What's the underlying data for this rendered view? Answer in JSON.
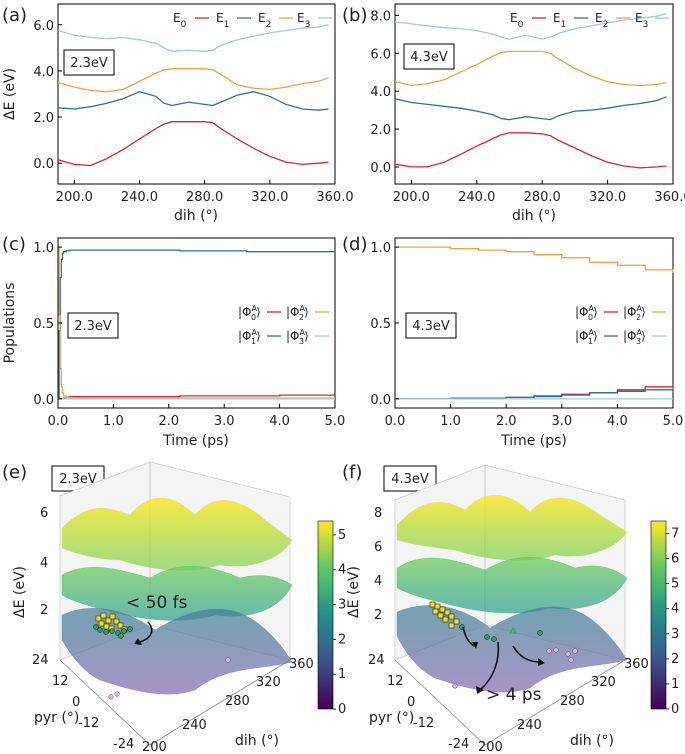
{
  "labels": {
    "a": "(a)",
    "b": "(b)",
    "c": "(c)",
    "d": "(d)",
    "e": "(e)",
    "f": "(f)",
    "energy_ylabel": "ΔE (eV)",
    "dih_xlabel": "dih (°)",
    "pop_ylabel": "Populations",
    "time_xlabel": "Time (ps)",
    "box_23": "2.3eV",
    "box_43": "4.3eV",
    "leg_E0": "E",
    "leg_E1": "E",
    "leg_E2": "E",
    "leg_E3": "E",
    "sub0": "0",
    "sub1": "1",
    "sub2": "2",
    "sub3": "3",
    "phi_sup": "A",
    "ann_e": "< 50 fs",
    "ann_f": "> 4 ps",
    "pyr_label": "pyr (°)",
    "dih3d_label": "dih (°)",
    "dE3d_label": "ΔE (eV)"
  },
  "colors": {
    "E0": "#d62728",
    "E1": "#2c6ea6",
    "E2": "#f5a042",
    "E3": "#9ccbe2"
  },
  "chart_data": [
    {
      "panel": "a",
      "type": "line",
      "xlabel": "dih (°)",
      "ylabel": "ΔE (eV)",
      "xlim": [
        190,
        360
      ],
      "ylim": [
        -0.9,
        6.9
      ],
      "xticks": [
        "200.0",
        "240.0",
        "280.0",
        "320.0",
        "360.0"
      ],
      "yticks": [
        "0.0",
        "2.0",
        "4.0",
        "6.0"
      ],
      "x": [
        190,
        200,
        210,
        220,
        230,
        240,
        250,
        255,
        260,
        270,
        280,
        285,
        290,
        300,
        310,
        320,
        330,
        340,
        350,
        356
      ],
      "series": [
        {
          "name": "E0",
          "values": [
            0.15,
            -0.05,
            -0.1,
            0.2,
            0.6,
            1.05,
            1.5,
            1.7,
            1.8,
            1.8,
            1.8,
            1.75,
            1.5,
            1.05,
            0.65,
            0.3,
            0.05,
            -0.05,
            0.0,
            0.05
          ]
        },
        {
          "name": "E1",
          "values": [
            2.4,
            2.35,
            2.45,
            2.6,
            2.8,
            3.1,
            2.9,
            2.6,
            2.5,
            2.65,
            2.55,
            2.5,
            2.65,
            2.95,
            3.1,
            2.9,
            2.55,
            2.35,
            2.3,
            2.35
          ]
        },
        {
          "name": "E2",
          "values": [
            3.5,
            3.3,
            3.15,
            3.1,
            3.2,
            3.55,
            3.9,
            4.05,
            4.1,
            4.1,
            4.1,
            4.05,
            3.85,
            3.4,
            3.25,
            3.2,
            3.3,
            3.45,
            3.55,
            3.7
          ]
        },
        {
          "name": "E3",
          "values": [
            5.75,
            5.55,
            5.45,
            5.4,
            5.45,
            5.35,
            5.2,
            5.0,
            4.85,
            4.9,
            4.85,
            4.9,
            5.1,
            5.35,
            5.5,
            5.65,
            5.75,
            5.85,
            5.9,
            6.0
          ]
        }
      ]
    },
    {
      "panel": "b",
      "type": "line",
      "xlabel": "dih (°)",
      "ylabel": "",
      "xlim": [
        190,
        360
      ],
      "ylim": [
        -0.9,
        8.6
      ],
      "xticks": [
        "200.0",
        "240.0",
        "280.0",
        "320.0",
        "360.0"
      ],
      "yticks": [
        "0.0",
        "2.0",
        "4.0",
        "6.0",
        "8.0"
      ],
      "x": [
        190,
        200,
        210,
        220,
        230,
        240,
        250,
        255,
        260,
        270,
        280,
        285,
        290,
        300,
        310,
        320,
        330,
        340,
        350,
        356
      ],
      "series": [
        {
          "name": "E0",
          "values": [
            0.15,
            0.0,
            0.0,
            0.25,
            0.65,
            1.1,
            1.5,
            1.7,
            1.8,
            1.8,
            1.75,
            1.65,
            1.4,
            1.0,
            0.6,
            0.25,
            0.05,
            -0.05,
            0.0,
            0.05
          ]
        },
        {
          "name": "E1",
          "values": [
            3.6,
            3.4,
            3.3,
            3.2,
            3.1,
            2.95,
            2.75,
            2.55,
            2.5,
            2.65,
            2.55,
            2.5,
            2.7,
            2.95,
            3.0,
            3.1,
            3.25,
            3.35,
            3.5,
            3.7
          ]
        },
        {
          "name": "E2",
          "values": [
            4.5,
            4.3,
            4.4,
            4.6,
            5.0,
            5.4,
            5.85,
            6.05,
            6.1,
            6.1,
            6.1,
            6.0,
            5.7,
            5.2,
            4.8,
            4.5,
            4.35,
            4.3,
            4.35,
            4.45
          ]
        },
        {
          "name": "E3",
          "values": [
            7.65,
            7.55,
            7.45,
            7.35,
            7.3,
            7.2,
            7.0,
            6.85,
            6.75,
            6.95,
            6.75,
            6.85,
            7.05,
            7.3,
            7.45,
            7.6,
            7.75,
            7.85,
            7.95,
            8.1
          ]
        }
      ]
    },
    {
      "panel": "c",
      "type": "line",
      "xlabel": "Time (ps)",
      "ylabel": "Populations",
      "xlim": [
        0,
        5
      ],
      "ylim": [
        -0.06,
        1.06
      ],
      "xticks": [
        "0.0",
        "1.0",
        "2.0",
        "3.0",
        "4.0",
        "5.0"
      ],
      "yticks": [
        "0.0",
        "0.5",
        "1.0"
      ],
      "x": [
        0,
        0.02,
        0.04,
        0.06,
        0.08,
        0.1,
        0.15,
        0.2,
        0.5,
        1.0,
        2.0,
        2.2,
        3.0,
        3.4,
        4.0,
        4.5,
        5.0
      ],
      "series": [
        {
          "name": "Φ0",
          "values": [
            0,
            0,
            0,
            0,
            0,
            0.005,
            0.01,
            0.015,
            0.015,
            0.015,
            0.015,
            0.02,
            0.02,
            0.02,
            0.025,
            0.025,
            0.025
          ]
        },
        {
          "name": "Φ1",
          "values": [
            0,
            0.45,
            0.8,
            0.92,
            0.96,
            0.97,
            0.975,
            0.98,
            0.98,
            0.98,
            0.98,
            0.975,
            0.975,
            0.97,
            0.97,
            0.97,
            0.97
          ]
        },
        {
          "name": "Φ2",
          "values": [
            1,
            0.55,
            0.2,
            0.08,
            0.04,
            0.02,
            0.01,
            0.005,
            0.005,
            0.005,
            0.005,
            0.005,
            0.005,
            0.005,
            0.005,
            0.005,
            0.005
          ]
        },
        {
          "name": "Φ3",
          "values": [
            0,
            0,
            0,
            0,
            0,
            0,
            0,
            0,
            0,
            0,
            0,
            0,
            0,
            0,
            0,
            0,
            0
          ]
        }
      ]
    },
    {
      "panel": "d",
      "type": "line",
      "xlabel": "Time (ps)",
      "ylabel": "",
      "xlim": [
        0,
        5
      ],
      "ylim": [
        -0.06,
        1.06
      ],
      "xticks": [
        "0.0",
        "1.0",
        "2.0",
        "3.0",
        "4.0",
        "5.0"
      ],
      "yticks": [
        "0.0",
        "0.5",
        "1.0"
      ],
      "x": [
        0,
        0.4,
        1.0,
        1.5,
        2.0,
        2.5,
        3.0,
        3.5,
        4.0,
        4.5,
        5.0
      ],
      "series": [
        {
          "name": "Φ0",
          "values": [
            0,
            0.0,
            0.0,
            0.005,
            0.01,
            0.02,
            0.03,
            0.04,
            0.06,
            0.08,
            0.085
          ]
        },
        {
          "name": "Φ1",
          "values": [
            0,
            0.0,
            0.005,
            0.005,
            0.01,
            0.015,
            0.025,
            0.04,
            0.05,
            0.06,
            0.07
          ]
        },
        {
          "name": "Φ2",
          "values": [
            1,
            1.0,
            0.99,
            0.98,
            0.97,
            0.95,
            0.93,
            0.9,
            0.88,
            0.85,
            0.83
          ]
        },
        {
          "name": "Φ3",
          "values": [
            0,
            0,
            0,
            0,
            0,
            0,
            0,
            0,
            0,
            0,
            0
          ]
        }
      ]
    },
    {
      "panel": "e",
      "type": "surface3d",
      "zlabel": "ΔE (eV)",
      "ylabel": "pyr (°)",
      "xlabel": "dih (°)",
      "zticks": [
        "2",
        "4",
        "6"
      ],
      "pyrticks": [
        "24",
        "12",
        "0",
        "-12",
        "-24"
      ],
      "dihticks": [
        "200",
        "240",
        "280",
        "320",
        "360"
      ],
      "colorbar": {
        "min": 0,
        "max": 5.4,
        "ticks": [
          "0",
          "1",
          "2",
          "3",
          "4",
          "5"
        ]
      },
      "annotation": "< 50 fs"
    },
    {
      "panel": "f",
      "type": "surface3d",
      "zlabel": "ΔE (eV)",
      "ylabel": "pyr (°)",
      "xlabel": "dih (°)",
      "zticks": [
        "2",
        "4",
        "6",
        "8"
      ],
      "pyrticks": [
        "24",
        "12",
        "0",
        "-12",
        "-24"
      ],
      "dihticks": [
        "200",
        "240",
        "280",
        "320",
        "360"
      ],
      "colorbar": {
        "min": 0,
        "max": 7.5,
        "ticks": [
          "0",
          "1",
          "2",
          "3",
          "4",
          "5",
          "6",
          "7"
        ]
      },
      "annotation": "> 4 ps"
    }
  ]
}
